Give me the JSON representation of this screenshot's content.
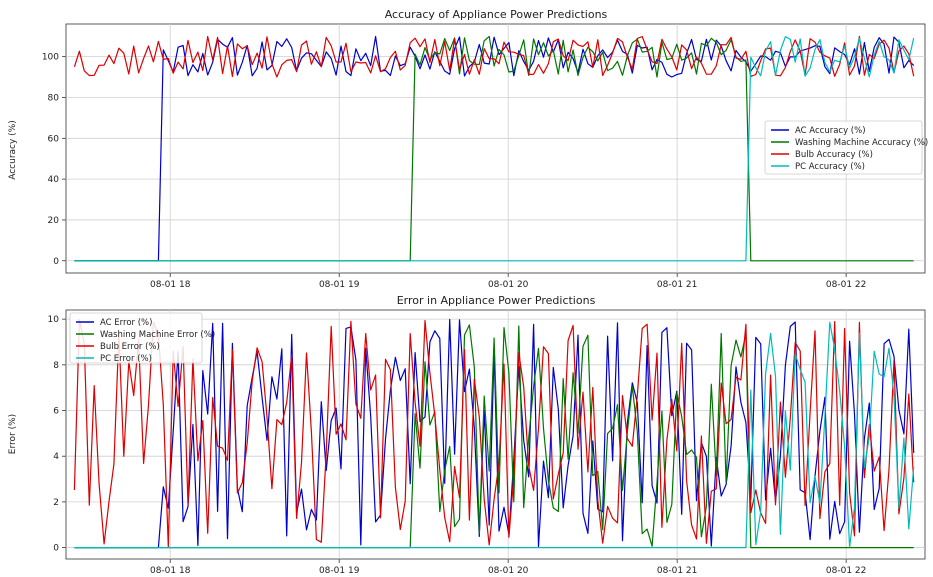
{
  "chart_data": [
    {
      "type": "line",
      "title": "Accuracy of Appliance Power Predictions",
      "ylabel": "Accuracy (%)",
      "xlabel": "",
      "xlim": [
        "08-01 17:23",
        "08-01 22:28"
      ],
      "ylim": [
        -6,
        116
      ],
      "x_ticks": [
        "08-01 18",
        "08-01 19",
        "08-01 20",
        "08-01 21",
        "08-01 22"
      ],
      "y_ticks": [
        0,
        20,
        40,
        60,
        80,
        100
      ],
      "grid": true,
      "legend_position": "center-right",
      "x_start": "08-01 17:26",
      "x_end": "08-01 22:24",
      "series": [
        {
          "name": "AC Accuracy (%)",
          "color": "#0000cc",
          "active_from": "08-01 17:56",
          "active_to": "08-01 22:24",
          "min": 90,
          "max": 110,
          "seed": 11
        },
        {
          "name": "Washing Machine Accuracy (%)",
          "color": "#007700",
          "active_from": "08-01 19:26",
          "active_to": "08-01 21:26",
          "min": 90,
          "max": 110,
          "seed": 23
        },
        {
          "name": "Bulb Accuracy (%)",
          "color": "#dd0000",
          "active_from": "08-01 17:26",
          "active_to": "08-01 22:24",
          "min": 90,
          "max": 110,
          "seed": 37
        },
        {
          "name": "PC Accuracy (%)",
          "color": "#00bbbb",
          "active_from": "08-01 21:26",
          "active_to": "08-01 22:24",
          "min": 90,
          "max": 110,
          "seed": 51
        }
      ]
    },
    {
      "type": "line",
      "title": "Error in Appliance Power Predictions",
      "ylabel": "Error (%)",
      "xlabel": "",
      "xlim": [
        "08-01 17:23",
        "08-01 22:28"
      ],
      "ylim": [
        -0.5,
        10.4
      ],
      "x_ticks": [
        "08-01 18",
        "08-01 19",
        "08-01 20",
        "08-01 21",
        "08-01 22"
      ],
      "y_ticks": [
        0,
        2,
        4,
        6,
        8,
        10
      ],
      "grid": true,
      "legend_position": "top-left",
      "x_start": "08-01 17:26",
      "x_end": "08-01 22:24",
      "series": [
        {
          "name": "AC Error (%)",
          "color": "#0000cc",
          "active_from": "08-01 17:56",
          "active_to": "08-01 22:24",
          "min": 0,
          "max": 10,
          "seed": 13
        },
        {
          "name": "Washing Machine Error (%)",
          "color": "#007700",
          "active_from": "08-01 19:26",
          "active_to": "08-01 21:26",
          "min": 0,
          "max": 10,
          "seed": 29
        },
        {
          "name": "Bulb Error (%)",
          "color": "#dd0000",
          "active_from": "08-01 17:26",
          "active_to": "08-01 22:24",
          "min": 0,
          "max": 10,
          "seed": 41
        },
        {
          "name": "PC Error (%)",
          "color": "#00bbbb",
          "active_from": "08-01 21:26",
          "active_to": "08-01 22:24",
          "min": 0,
          "max": 10,
          "seed": 57
        }
      ]
    }
  ]
}
